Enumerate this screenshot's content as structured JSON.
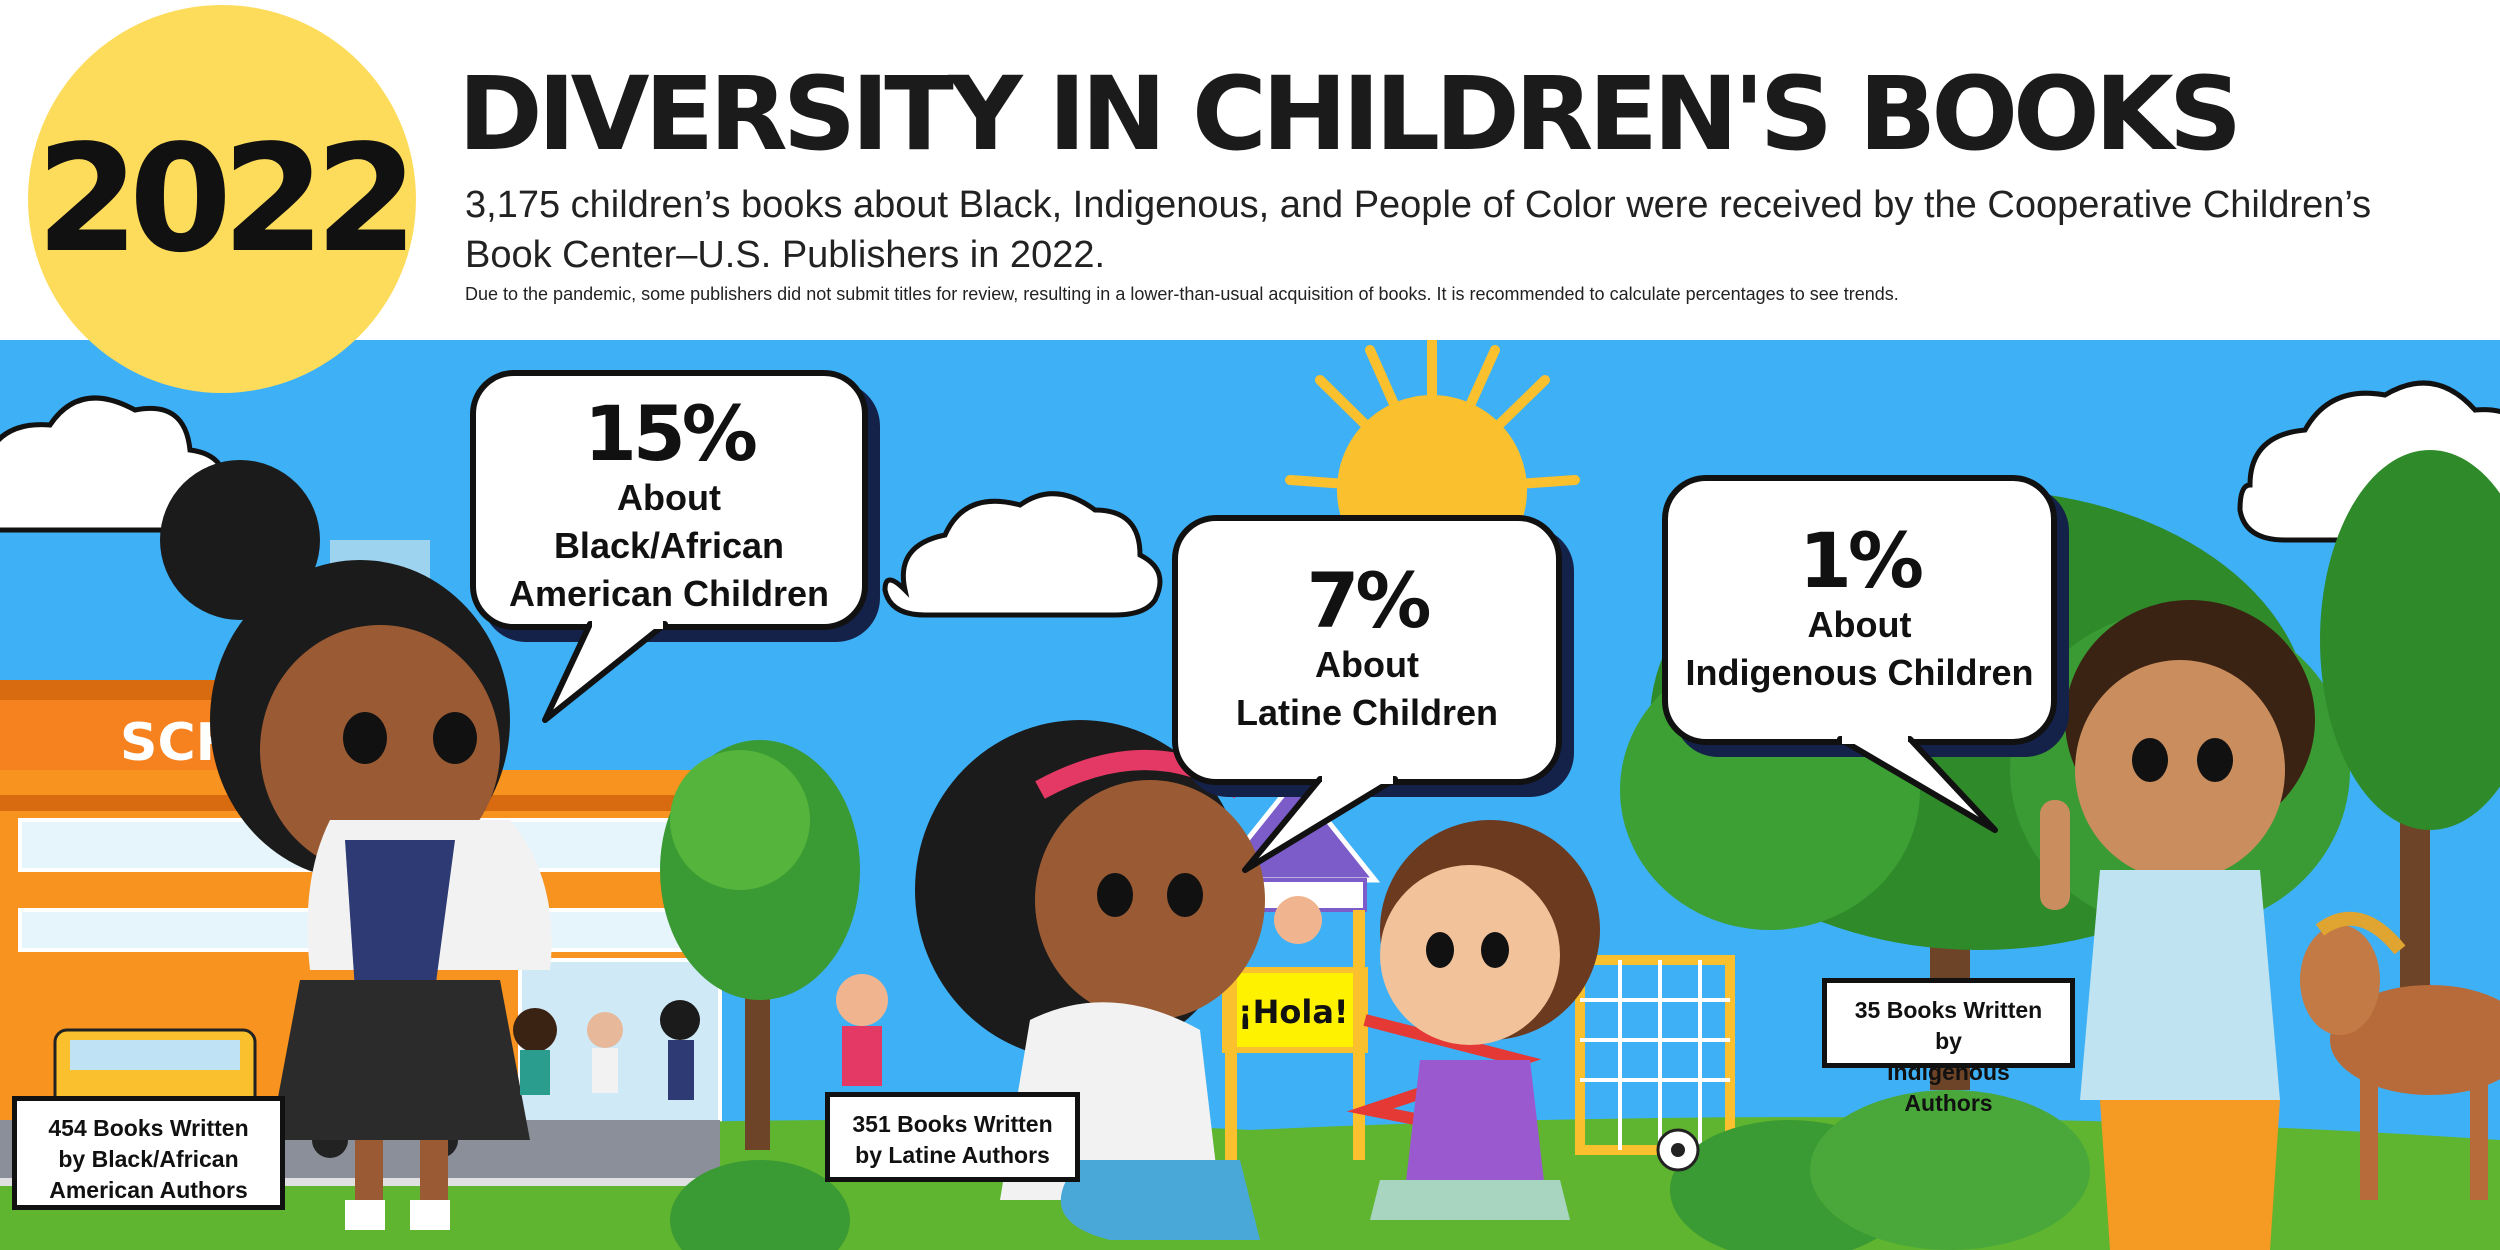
{
  "header": {
    "year": "2022",
    "title": "DIVERSITY IN CHILDREN'S BOOKS",
    "subtitle": "3,175 children’s books about Black, Indigenous, and People of Color were received by the Cooperative Children’s Book Center–U.S. Publishers in 2022.",
    "note": "Due to the pandemic, some publishers did not submit titles for review, resulting in a lower-than-usual acquisition of books. It is recommended to calculate percentages to see trends."
  },
  "bubbles": [
    {
      "percent": "15%",
      "line1": "About",
      "line2": "Black/African",
      "line3": "American Children"
    },
    {
      "percent": "7%",
      "line1": "About",
      "line2": "Latine Children"
    },
    {
      "percent": "1%",
      "line1": "About",
      "line2": "Indigenous Children"
    }
  ],
  "author_boxes": [
    {
      "line1": "454 Books Written",
      "line2": "by Black/African",
      "line3": "American Authors"
    },
    {
      "line1": "351 Books Written",
      "line2": "by Latine Authors"
    },
    {
      "line1": "35 Books Written by",
      "line2": "Indigenous Authors"
    }
  ],
  "scene_signs": {
    "school": "SCHO",
    "hola": "¡Hola!"
  },
  "colors": {
    "sky": "#3eb0f5",
    "year_circle": "#fddc5c",
    "grass": "#5fb52f",
    "school": "#f5821f",
    "sun": "#fbc02d"
  },
  "icons": [
    "sun-icon",
    "cloud-icon",
    "tree-icon",
    "school-building",
    "school-bus-icon",
    "playground-icon",
    "horse-icon",
    "soccer-ball-icon"
  ]
}
